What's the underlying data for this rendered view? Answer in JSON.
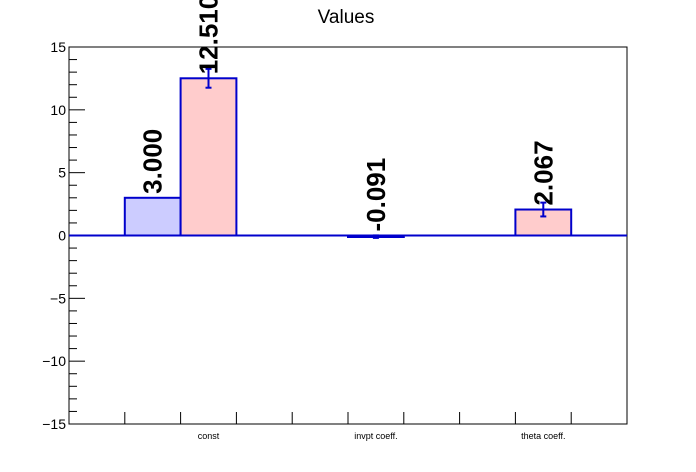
{
  "chart_data": {
    "type": "bar",
    "title": "Values",
    "xlabel": "",
    "ylabel": "",
    "ylim": [
      -15,
      15
    ],
    "yticks": [
      -15,
      -10,
      -5,
      0,
      5,
      10,
      15
    ],
    "ytick_labels": [
      "−15",
      "−10",
      "−5",
      "0",
      "5",
      "10",
      "15"
    ],
    "categories": [
      "const",
      "invpt coeff.",
      "theta coeff."
    ],
    "series": [
      {
        "color": "#ccccff",
        "values": [
          3.0,
          null,
          null
        ],
        "errors": [
          null,
          null,
          null
        ],
        "labels": [
          "3.000",
          "",
          ""
        ]
      },
      {
        "color": "#ffcccc",
        "values": [
          12.51,
          -0.091,
          2.067
        ],
        "errors": [
          0.75,
          0.1,
          0.55
        ],
        "labels": [
          "12.510",
          "-0.091",
          "2.067"
        ]
      }
    ],
    "bar_edge_color": "#0000cc",
    "grid": false,
    "legend": "none"
  }
}
